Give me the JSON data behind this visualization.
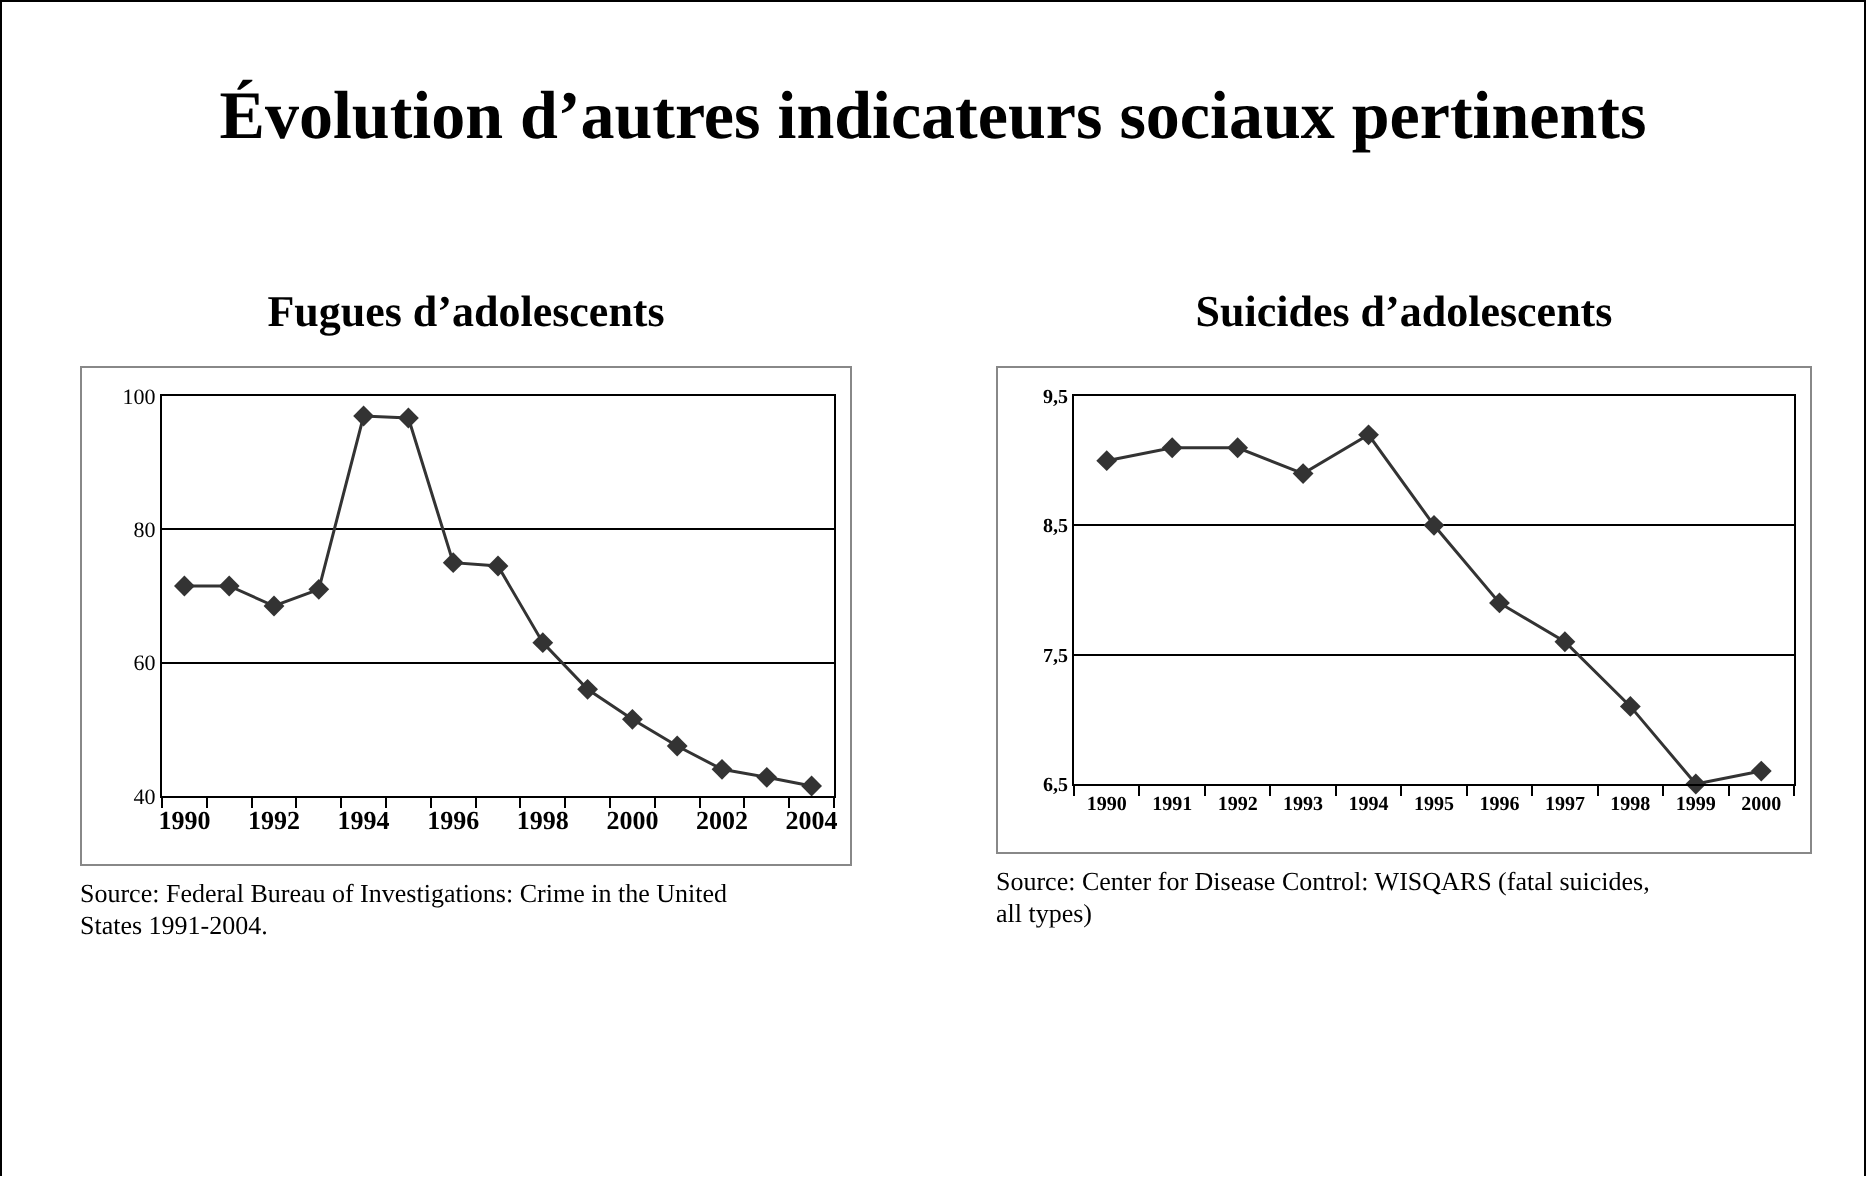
{
  "chart_data": [
    {
      "type": "other",
      "title": "Évolution d’autres indicateurs sociaux pertinents"
    },
    {
      "type": "line",
      "title": "Fugues d’adolescents",
      "categories": [
        "1990",
        null,
        "1992",
        null,
        "1994",
        null,
        "1996",
        null,
        "1998",
        null,
        "2000",
        null,
        "2002",
        null,
        "2004"
      ],
      "series": [
        {
          "color": "#333333",
          "values": [
            71.5,
            71.5,
            68.5,
            71,
            97,
            96.7,
            75,
            74.5,
            63,
            56,
            51.5,
            47.5,
            44,
            42.8,
            41.5
          ]
        }
      ],
      "ylim": [
        40,
        100
      ],
      "yticks": [
        40,
        60,
        80,
        100
      ],
      "grid": "y",
      "marker": "diamond",
      "line_style": "solid",
      "legend": false,
      "annotations": [
        "Source: Federal Bureau of Investigations: Crime in the United States 1991-2004."
      ]
    },
    {
      "type": "line",
      "title": "Suicides d’adolescents",
      "categories": [
        "1990",
        "1991",
        "1992",
        "1993",
        "1994",
        "1995",
        "1996",
        "1997",
        "1998",
        "1999",
        "2000"
      ],
      "series": [
        {
          "color": "#333333",
          "values": [
            9.0,
            9.1,
            9.1,
            8.9,
            9.2,
            8.5,
            7.9,
            7.6,
            7.1,
            6.5,
            6.6
          ]
        }
      ],
      "ylim": [
        6.5,
        9.5
      ],
      "yticks": [
        {
          "value": 6.5,
          "label": "6,5"
        },
        {
          "value": 7.5,
          "label": "7,5"
        },
        {
          "value": 8.5,
          "label": "8,5"
        },
        {
          "value": 9.5,
          "label": "9,5"
        }
      ],
      "grid": "y",
      "marker": "diamond",
      "line_style": "solid",
      "legend": false,
      "annotations": [
        "Source: Center for Disease Control: WISQARS (fatal suicides, all types)"
      ]
    }
  ]
}
